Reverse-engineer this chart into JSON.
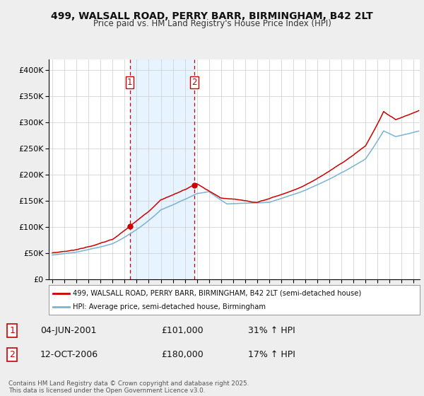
{
  "title_line1": "499, WALSALL ROAD, PERRY BARR, BIRMINGHAM, B42 2LT",
  "title_line2": "Price paid vs. HM Land Registry's House Price Index (HPI)",
  "background_color": "#eeeeee",
  "plot_bg_color": "#ffffff",
  "legend_entry1": "499, WALSALL ROAD, PERRY BARR, BIRMINGHAM, B42 2LT (semi-detached house)",
  "legend_entry2": "HPI: Average price, semi-detached house, Birmingham",
  "transaction1_label": "1",
  "transaction1_date": "04-JUN-2001",
  "transaction1_price": "£101,000",
  "transaction1_hpi": "31% ↑ HPI",
  "transaction2_label": "2",
  "transaction2_date": "12-OCT-2006",
  "transaction2_price": "£180,000",
  "transaction2_hpi": "17% ↑ HPI",
  "footer": "Contains HM Land Registry data © Crown copyright and database right 2025.\nThis data is licensed under the Open Government Licence v3.0.",
  "vline1_x": 2001.42,
  "vline2_x": 2006.79,
  "marker1_x": 2001.42,
  "marker1_y": 101000,
  "marker2_x": 2006.79,
  "marker2_y": 180000,
  "red_color": "#cc0000",
  "blue_color": "#7ab3d4",
  "vline_color": "#cc0000",
  "ylim_max": 420000,
  "shade_color": "#ddeeff",
  "yticks": [
    0,
    50000,
    100000,
    150000,
    200000,
    250000,
    300000,
    350000,
    400000
  ],
  "xlim_min": 1994.7,
  "xlim_max": 2025.5
}
